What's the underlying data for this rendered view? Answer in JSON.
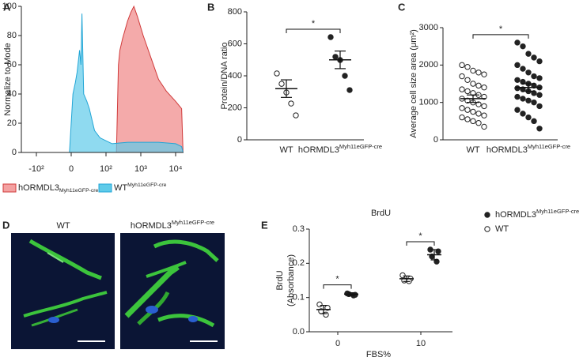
{
  "chart_data": [
    {
      "type": "histogram_overlay",
      "panel_label": "A",
      "y_label": "Normalize to Mode",
      "xlim": [
        -150,
        17000
      ],
      "ylim": [
        0,
        100
      ],
      "xticks": [
        {
          "value": -100,
          "label": "-10²"
        },
        0,
        {
          "value": 100,
          "label": "10²"
        },
        {
          "value": 1000,
          "label": "10³"
        },
        {
          "value": 10000,
          "label": "10⁴"
        }
      ],
      "yticks": [
        0,
        20,
        40,
        60,
        80,
        100
      ],
      "series": [
        {
          "name": "hORMDL3",
          "name_tag": "Myh11eGFP-cre",
          "color": "#d03a3a",
          "fill": "#f3a1a1",
          "x": [
            200,
            227,
            251,
            300,
            417,
            520,
            631,
            800,
            1170,
            1940,
            3230,
            5400,
            10000,
            15000,
            16500
          ],
          "values": [
            0,
            60,
            70,
            78,
            90,
            96,
            100,
            93,
            80,
            65,
            50,
            42,
            35,
            30,
            0
          ]
        },
        {
          "name": "WT",
          "name_tag": "Myh11eGFP-cre",
          "color": "#22a6d6",
          "fill": "#5fcbe9",
          "x": [
            -5,
            5,
            12,
            17,
            24,
            28,
            31,
            36,
            45,
            52,
            67,
            83,
            100,
            150,
            417,
            1170,
            3230,
            10000,
            15000,
            16500
          ],
          "values": [
            0,
            40,
            48,
            55,
            70,
            60,
            95,
            40,
            35,
            30,
            15,
            10,
            8,
            6,
            7,
            7,
            7,
            6,
            4,
            0
          ]
        }
      ]
    },
    {
      "type": "dot",
      "panel_label": "B",
      "y_label": "Protein/DNA ratio",
      "ylim": [
        0,
        800
      ],
      "yticks": [
        0,
        200,
        400,
        600,
        800
      ],
      "significance_label": "*",
      "series": [
        {
          "name": "WT",
          "color": "#222",
          "filled": false,
          "values": [
            415,
            350,
            296,
            227,
            153
          ],
          "mean": 320,
          "error": 55
        },
        {
          "name": "hORMDL3",
          "name_tag": "Myh11eGFP-cre",
          "color": "#222",
          "filled": true,
          "values": [
            642,
            519,
            499,
            400,
            311
          ],
          "mean": 500,
          "error": 55
        }
      ]
    },
    {
      "type": "dot",
      "panel_label": "C",
      "y_label": "Average cell size area (μm²)",
      "ylim": [
        0,
        3000
      ],
      "yticks": [
        0,
        1000,
        2000,
        3000
      ],
      "significance_label": "*",
      "series": [
        {
          "name": "WT",
          "color": "#222",
          "filled": false,
          "values": [
            2000,
            1950,
            1850,
            1800,
            1750,
            1700,
            1600,
            1500,
            1450,
            1400,
            1350,
            1300,
            1250,
            1200,
            1150,
            1100,
            1050,
            1000,
            950,
            900,
            850,
            800,
            750,
            700,
            650,
            600,
            550,
            500,
            450,
            350
          ],
          "mean": 1100,
          "error": 100
        },
        {
          "name": "hORMDL3",
          "name_tag": "Myh11eGFP-cre",
          "color": "#222",
          "filled": true,
          "values": [
            2600,
            2500,
            2300,
            2200,
            2100,
            2000,
            1900,
            1800,
            1700,
            1650,
            1600,
            1550,
            1500,
            1450,
            1400,
            1380,
            1350,
            1300,
            1250,
            1200,
            1150,
            1100,
            1050,
            1000,
            900,
            800,
            700,
            600,
            500,
            300
          ],
          "mean": 1400,
          "error": 100
        }
      ]
    },
    {
      "type": "grouped_dot",
      "panel_label": "E",
      "title": "BrdU",
      "y_label": [
        "BrdU",
        "(Absorbance)"
      ],
      "x_label": "FBS%",
      "categories": [
        "0",
        "10"
      ],
      "ylim": [
        0,
        0.3
      ],
      "yticks": [
        {
          "value": 0,
          "label": "0.0"
        },
        0.1,
        0.2,
        0.3
      ],
      "significance_labels": [
        "*",
        "*"
      ],
      "series": [
        {
          "name": "hORMDL3",
          "name_tag": "Myh11eGFP-cre",
          "color": "#222",
          "filled": true,
          "values": [
            [
              0.112,
              0.108,
              0.11,
              0.106
            ],
            [
              0.24,
              0.235,
              0.22,
              0.205
            ]
          ],
          "means": [
            0.11,
            0.225
          ],
          "errors": [
            0.004,
            0.015
          ]
        },
        {
          "name": "WT",
          "color": "#222",
          "filled": false,
          "values": [
            [
              0.08,
              0.07,
              0.06,
              0.05
            ],
            [
              0.165,
              0.155,
              0.15,
              0.148
            ]
          ],
          "means": [
            0.065,
            0.155
          ],
          "errors": [
            0.012,
            0.008
          ]
        }
      ]
    }
  ],
  "images": {
    "panel_label": "D",
    "captions": [
      {
        "name": "WT"
      },
      {
        "name": "hORMDL3",
        "name_tag": "Myh11eGFP-cre"
      }
    ]
  }
}
